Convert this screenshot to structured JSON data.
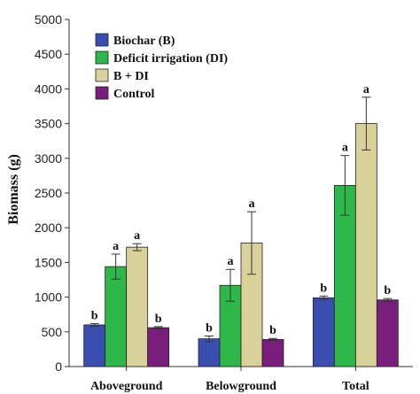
{
  "chart_data": {
    "type": "bar",
    "ylabel": "Biomass (g)",
    "xlabel": "",
    "ylim": [
      0,
      5000
    ],
    "yticks": [
      0,
      500,
      1000,
      1500,
      2000,
      2500,
      3000,
      3500,
      4000,
      4500,
      5000
    ],
    "grid": false,
    "legend_position": "top-left",
    "categories": [
      "Aboveground",
      "Belowground",
      "Total"
    ],
    "series": [
      {
        "name": "Biochar (B)",
        "color": "#3a4db0",
        "values": [
          600,
          400,
          990
        ],
        "errors": [
          20,
          40,
          25
        ],
        "labels": [
          "b",
          "b",
          "b"
        ]
      },
      {
        "name": "Deficit irrigation (DI)",
        "color": "#2eb84a",
        "values": [
          1440,
          1170,
          2610
        ],
        "errors": [
          180,
          230,
          430
        ],
        "labels": [
          "a",
          "a",
          "a"
        ]
      },
      {
        "name": "B + DI",
        "color": "#d9d19a",
        "values": [
          1720,
          1780,
          3500
        ],
        "errors": [
          50,
          450,
          380
        ],
        "labels": [
          "a",
          "a",
          "a"
        ]
      },
      {
        "name": "Control",
        "color": "#7a1e7e",
        "values": [
          560,
          390,
          960
        ],
        "errors": [
          15,
          15,
          20
        ],
        "labels": [
          "b",
          "b",
          "b"
        ]
      }
    ]
  }
}
